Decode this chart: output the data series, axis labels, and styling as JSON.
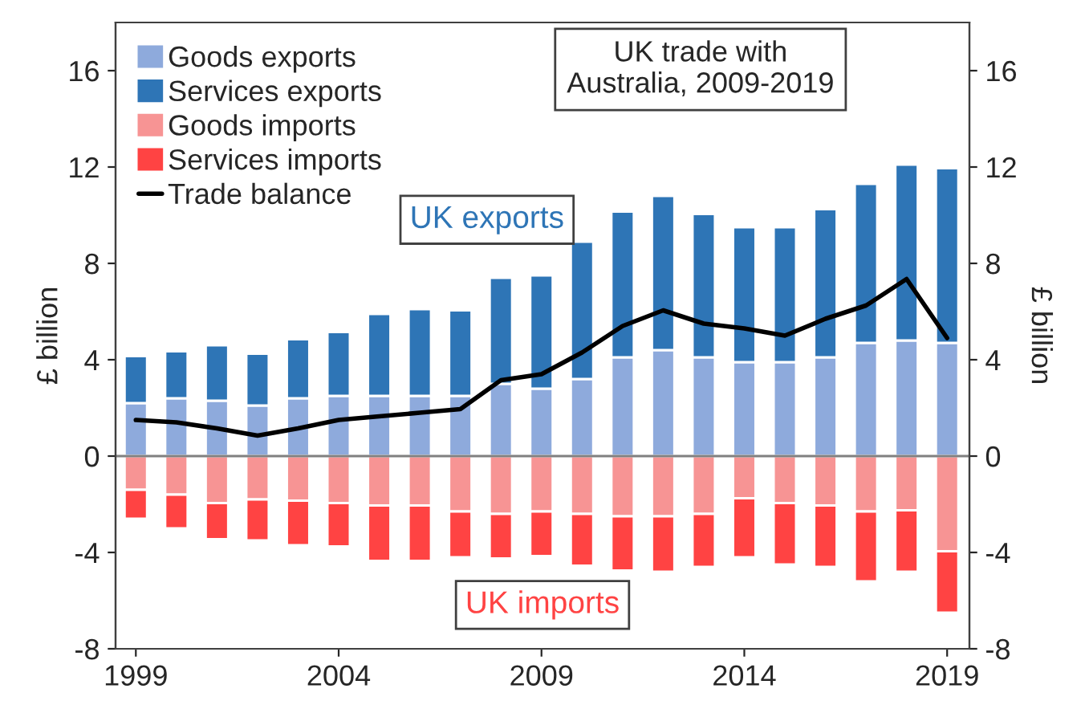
{
  "chart_data": {
    "type": "bar",
    "title": "UK trade with\nAustralia, 2009-2019",
    "ylabel": "£ billion",
    "y2label": "£ billion",
    "stacked": true,
    "legend": "top left",
    "grid": false,
    "x": [
      1999,
      2000,
      2001,
      2002,
      2003,
      2004,
      2005,
      2006,
      2007,
      2008,
      2009,
      2010,
      2011,
      2012,
      2013,
      2014,
      2015,
      2016,
      2017,
      2018,
      2019
    ],
    "xlim": [
      1998.5,
      2019.55
    ],
    "xticks": [
      1999,
      2004,
      2009,
      2014,
      2019
    ],
    "ylim": [
      -8,
      18
    ],
    "yticks": [
      -8,
      -4,
      0,
      4,
      8,
      12,
      16
    ],
    "y2lim": [
      -8,
      18
    ],
    "y2ticks": [
      -8,
      -4,
      0,
      4,
      8,
      12,
      16
    ],
    "series": [
      {
        "name": "Goods exports",
        "color": "#8eaadc",
        "values": [
          2.2,
          2.4,
          2.3,
          2.1,
          2.4,
          2.5,
          2.5,
          2.5,
          2.5,
          3.0,
          2.8,
          3.2,
          4.1,
          4.4,
          4.1,
          3.9,
          3.9,
          4.1,
          4.7,
          4.8,
          4.7
        ]
      },
      {
        "name": "Services exports",
        "color": "#2e75b6",
        "values": [
          1.95,
          1.95,
          2.3,
          2.15,
          2.45,
          2.65,
          3.4,
          3.6,
          3.55,
          4.4,
          4.7,
          5.7,
          6.05,
          6.4,
          5.95,
          5.6,
          5.6,
          6.15,
          6.6,
          7.3,
          7.25
        ]
      },
      {
        "name": "Goods imports",
        "color": "#f79494",
        "values": [
          -1.4,
          -1.6,
          -1.95,
          -1.8,
          -1.85,
          -1.95,
          -2.05,
          -2.05,
          -2.3,
          -2.4,
          -2.3,
          -2.4,
          -2.5,
          -2.5,
          -2.4,
          -1.75,
          -1.95,
          -2.05,
          -2.3,
          -2.25,
          -3.95
        ]
      },
      {
        "name": "Services imports",
        "color": "#ff4343",
        "values": [
          -1.2,
          -1.4,
          -1.5,
          -1.7,
          -1.85,
          -1.8,
          -2.3,
          -2.3,
          -1.9,
          -1.85,
          -1.85,
          -2.15,
          -2.25,
          -2.3,
          -2.2,
          -2.45,
          -2.55,
          -2.55,
          -2.9,
          -2.55,
          -2.55
        ]
      },
      {
        "name": "Trade balance",
        "type": "line",
        "color": "#000000",
        "values": [
          1.5,
          1.4,
          1.15,
          0.85,
          1.15,
          1.5,
          1.65,
          1.8,
          1.95,
          3.15,
          3.4,
          4.3,
          5.4,
          6.05,
          5.5,
          5.3,
          5.0,
          5.7,
          6.25,
          7.35,
          4.9
        ]
      }
    ],
    "ref_lines": [
      {
        "axis": "y",
        "value": 0,
        "color": "#808080"
      }
    ],
    "annotations": [
      "UK exports",
      "UK imports"
    ]
  }
}
